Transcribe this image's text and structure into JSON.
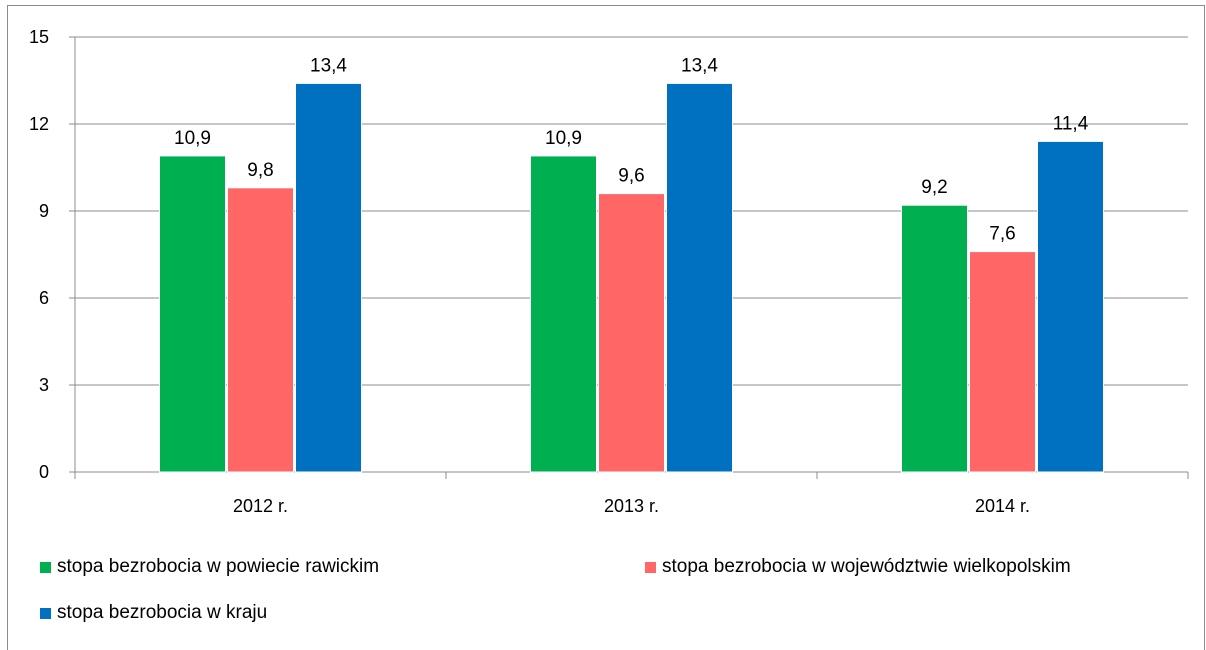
{
  "chart_data": {
    "type": "bar",
    "categories": [
      "2012 r.",
      "2013 r.",
      "2014 r."
    ],
    "series": [
      {
        "name": "stopa bezrobocia w powiecie rawickim",
        "color": "#00b050",
        "values": [
          10.9,
          10.9,
          9.2
        ],
        "labels": [
          "10,9",
          "10,9",
          "9,2"
        ]
      },
      {
        "name": "stopa bezrobocia w województwie wielkopolskim",
        "color": "#ff6666",
        "values": [
          9.8,
          9.6,
          7.6
        ],
        "labels": [
          "9,8",
          "9,6",
          "7,6"
        ]
      },
      {
        "name": "stopa bezrobocia w kraju",
        "color": "#0070c0",
        "values": [
          13.4,
          13.4,
          11.4
        ],
        "labels": [
          "13,4",
          "13,4",
          "11,4"
        ]
      }
    ],
    "yticks": [
      "0",
      "3",
      "6",
      "9",
      "12",
      "15"
    ],
    "ylim": [
      0,
      15
    ],
    "grid": true,
    "legend_position": "bottom",
    "title": "",
    "xlabel": "",
    "ylabel": ""
  }
}
